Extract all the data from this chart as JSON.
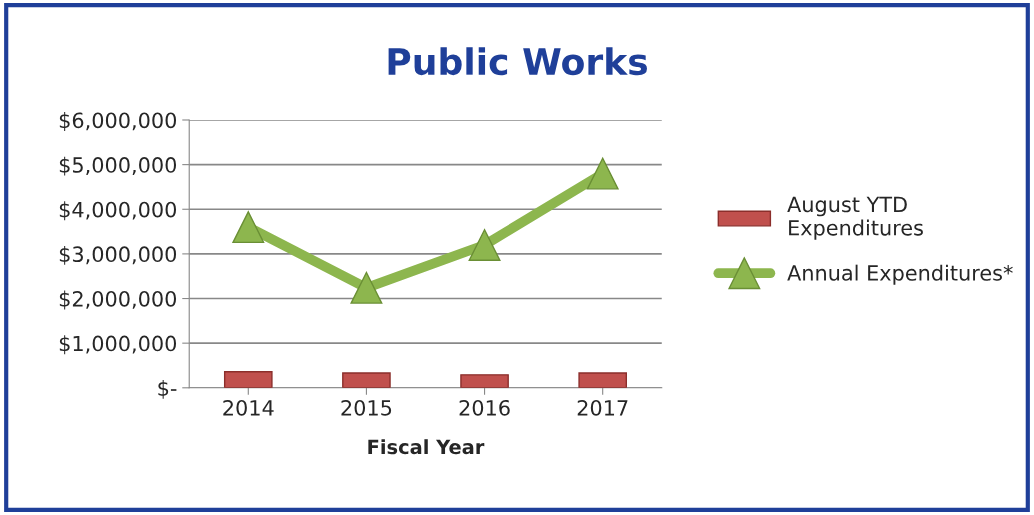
{
  "chart_data": {
    "type": "bar",
    "title": "Public Works",
    "xlabel": "Fiscal Year",
    "categories": [
      "2014",
      "2015",
      "2016",
      "2017"
    ],
    "series": [
      {
        "name": "August YTD\nExpenditures",
        "color": "#c0504d",
        "values": [
          360000,
          330000,
          290000,
          330000
        ]
      },
      {
        "name": "Annual Expenditures*",
        "type": "line",
        "color": "#8db64e",
        "marker": "triangle",
        "values": [
          3600000,
          2240000,
          3200000,
          4800000
        ]
      }
    ],
    "ylim": [
      0,
      6000000
    ],
    "yticks": [
      {
        "value": 0,
        "label": "$-"
      },
      {
        "value": 1000000,
        "label": "$1,000,000"
      },
      {
        "value": 2000000,
        "label": "$2,000,000"
      },
      {
        "value": 3000000,
        "label": "$3,000,000"
      },
      {
        "value": 4000000,
        "label": "$4,000,000"
      },
      {
        "value": 5000000,
        "label": "$5,000,000"
      },
      {
        "value": 6000000,
        "label": "$6,000,000"
      }
    ],
    "grid": "y",
    "legend": "right"
  }
}
